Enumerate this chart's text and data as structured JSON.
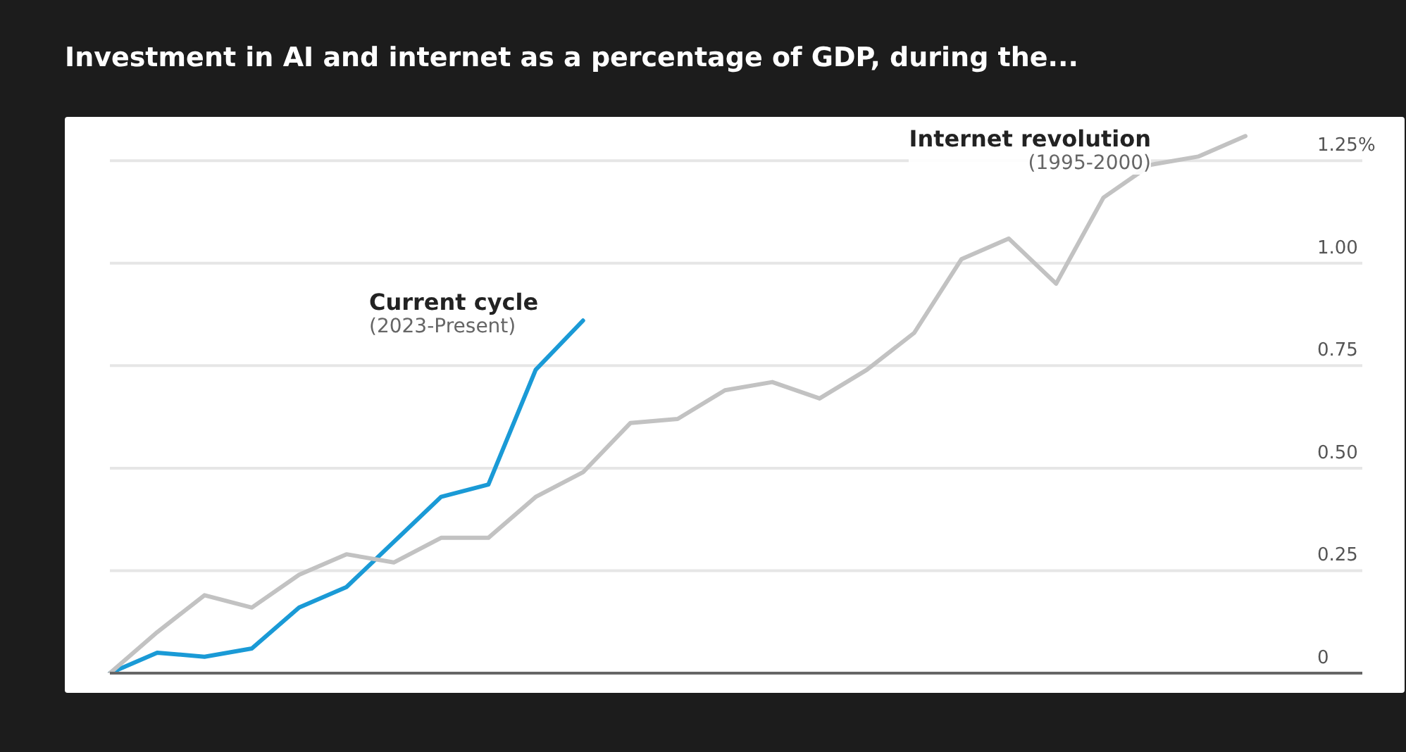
{
  "chart_data": {
    "type": "line",
    "title": "Investment in AI and internet as a percentage of GDP, during the...",
    "categories": [
      null,
      null,
      null,
      null,
      null,
      null,
      null,
      null,
      null,
      null,
      null,
      null,
      null,
      null,
      null,
      null,
      null,
      null,
      null,
      null,
      null,
      null,
      null,
      null,
      null
    ],
    "series": [
      {
        "name": "Current cycle",
        "color": "#1a9ad6",
        "values": [
          0,
          0.05,
          0.04,
          0.06,
          0.16,
          0.21,
          0.32,
          0.43,
          0.46,
          0.74,
          0.86,
          null,
          null,
          null,
          null,
          null,
          null,
          null,
          null,
          null,
          null,
          null,
          null,
          null,
          null
        ]
      },
      {
        "name": "Internet revolution",
        "color": "#c2c2c2",
        "values": [
          0,
          0.1,
          0.19,
          0.16,
          0.24,
          0.29,
          0.27,
          0.33,
          0.33,
          0.43,
          0.49,
          0.61,
          0.62,
          0.69,
          0.71,
          0.67,
          0.74,
          0.83,
          1.01,
          1.06,
          0.95,
          1.16,
          1.24,
          1.26,
          1.31
        ]
      }
    ],
    "annotations": [
      "(2023-Present)",
      "(1995-2000)"
    ],
    "ylim": [
      0,
      1.35
    ],
    "yticks": [
      0,
      {
        "value": 0.25,
        "label": "0.25"
      },
      {
        "value": 0.5,
        "label": "0.50"
      },
      {
        "value": 0.75,
        "label": "0.75"
      },
      {
        "value": 1,
        "label": "1.00"
      },
      {
        "value": 1.25,
        "label": "1.25%"
      }
    ],
    "grid": "y",
    "tick_labels": "y",
    "marker": "none",
    "line_style": "solid"
  }
}
